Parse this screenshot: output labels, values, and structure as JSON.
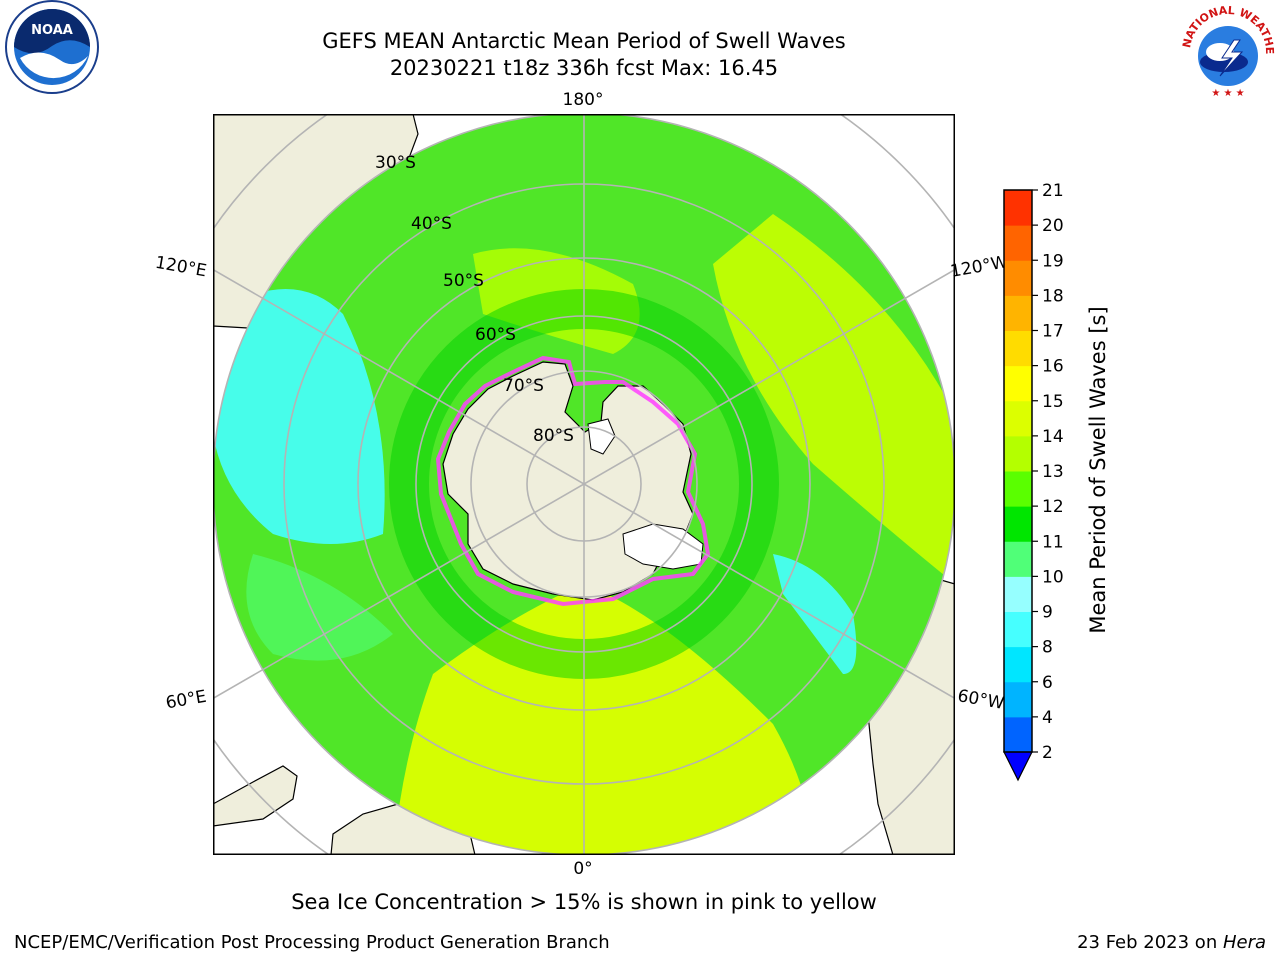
{
  "title_line1": "GEFS MEAN Antarctic Mean Period of Swell Waves",
  "title_line2": "20230221 t18z 336h fcst   Max: 16.45",
  "lon_labels": {
    "top": "180°",
    "bottom": "0°",
    "upper_left": "120°E",
    "upper_right": "120°W",
    "lower_left": "60°E",
    "lower_right": "60°W"
  },
  "lat_labels": [
    "30°S",
    "40°S",
    "50°S",
    "60°S",
    "70°S",
    "80°S"
  ],
  "colorbar": {
    "label": "Mean Period of Swell Waves [s]",
    "ticks": [
      "2",
      "4",
      "6",
      "8",
      "9",
      "10",
      "11",
      "12",
      "13",
      "14",
      "15",
      "16",
      "17",
      "18",
      "19",
      "20",
      "21"
    ],
    "colors": [
      "#0064ff",
      "#00b4ff",
      "#00e6ff",
      "#46ffff",
      "#96ffff",
      "#50ff78",
      "#00e600",
      "#5aff00",
      "#b4ff00",
      "#dcff00",
      "#ffff00",
      "#ffdc00",
      "#ffb400",
      "#ff8c00",
      "#ff6400",
      "#ff3200",
      "#ff0000"
    ],
    "under_color": "#0000ff"
  },
  "sea_ice_note": "Sea Ice Concentration > 15% is shown in pink to yellow",
  "credit": "NCEP/EMC/Verification Post Processing Product Generation Branch",
  "date_prefix": "23 Feb 2023 on ",
  "date_machine": "Hera",
  "noaa_logo_text": "NOAA",
  "nws_logo_text": "NATIONAL WEATHER SERVICE",
  "colors": {
    "land": "#efeedc",
    "antarctic_ice": "#ffffff",
    "grid": "#b4b4b4",
    "ice_edge": "#ff40ff"
  }
}
